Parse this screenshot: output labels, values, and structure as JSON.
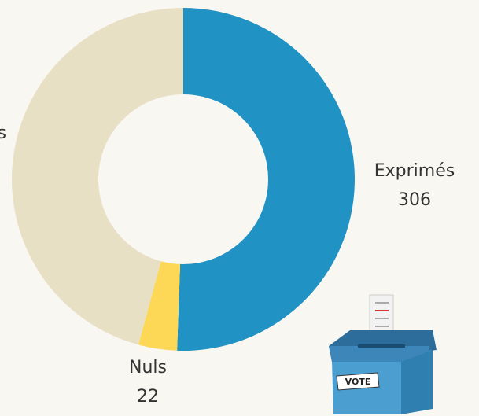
{
  "chart_data": {
    "type": "donut",
    "categories": [
      "Exprimés",
      "Nuls",
      "s"
    ],
    "values": [
      306,
      22,
      277
    ],
    "colors": [
      "#2192c4",
      "#fcd856",
      "#e8e0c5"
    ]
  }
}
